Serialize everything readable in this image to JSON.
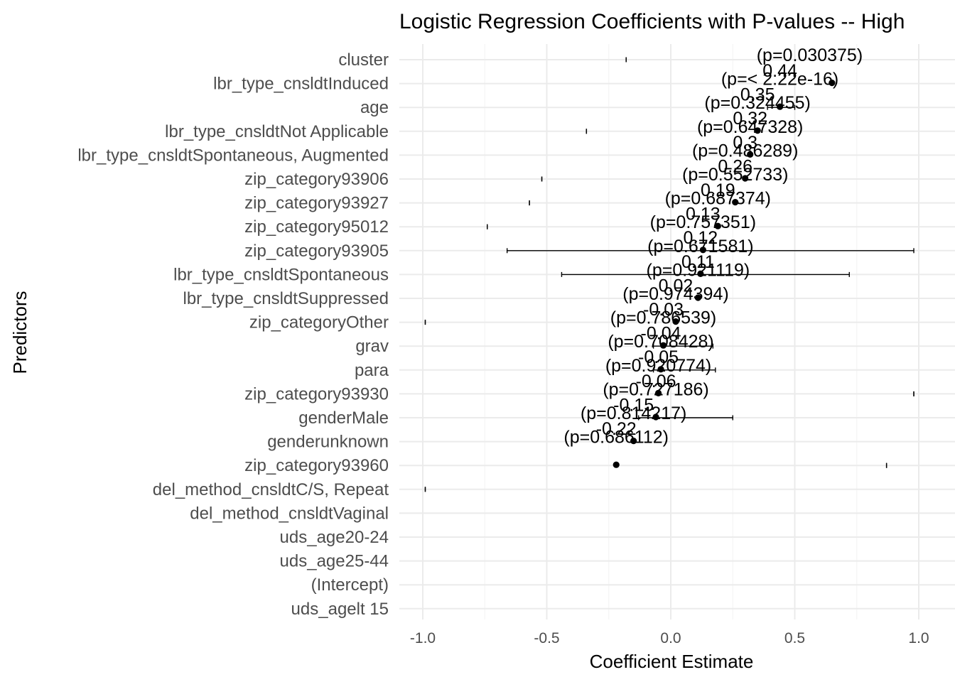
{
  "chart_data": {
    "type": "scatter",
    "title": "Logistic Regression Coefficients with P-values -- High",
    "xlabel": "Coefficient Estimate",
    "ylabel": "Predictors",
    "xlim": [
      -1.1,
      1.1
    ],
    "x_ticks": [
      -1.0,
      -0.5,
      0.0,
      0.5,
      1.0
    ],
    "x_tick_labels": [
      "-1.0",
      "-0.5",
      "0.0",
      "0.5",
      "1.0"
    ],
    "grid": true,
    "legend": "none",
    "predictors": [
      "cluster",
      "lbr_type_cnsldtInduced",
      "age",
      "lbr_type_cnsldtNot Applicable",
      "lbr_type_cnsldtSpontaneous, Augmented",
      "zip_category93906",
      "zip_category93927",
      "zip_category95012",
      "zip_category93905",
      "lbr_type_cnsldtSpontaneous",
      "lbr_type_cnsldtSuppressed",
      "zip_categoryOther",
      "grav",
      "para",
      "zip_category93930",
      "genderMale",
      "genderunknown",
      "zip_category93960",
      "del_method_cnsldtC/S, Repeat",
      "del_method_cnsldtVaginal",
      "uds_age20-24",
      "uds_age25-44",
      "(Intercept)",
      "uds_agelt 15"
    ],
    "points": [
      {
        "row": 1,
        "estimate": 0.65
      },
      {
        "row": 2,
        "estimate": 0.44
      },
      {
        "row": 3,
        "estimate": 0.35
      },
      {
        "row": 4,
        "estimate": 0.32
      },
      {
        "row": 5,
        "estimate": 0.3
      },
      {
        "row": 6,
        "estimate": 0.26
      },
      {
        "row": 7,
        "estimate": 0.19
      },
      {
        "row": 8,
        "estimate": 0.13
      },
      {
        "row": 9,
        "estimate": 0.12
      },
      {
        "row": 10,
        "estimate": 0.11
      },
      {
        "row": 11,
        "estimate": 0.02
      },
      {
        "row": 12,
        "estimate": -0.03
      },
      {
        "row": 13,
        "estimate": -0.04
      },
      {
        "row": 14,
        "estimate": -0.05
      },
      {
        "row": 15,
        "estimate": -0.06
      },
      {
        "row": 16,
        "estimate": -0.15
      },
      {
        "row": 17,
        "estimate": -0.22
      }
    ],
    "error_bars": [
      {
        "row": 0,
        "low": -0.18,
        "high": -0.18
      },
      {
        "row": 2,
        "low": 0.39,
        "high": 0.5
      },
      {
        "row": 3,
        "low": -0.34,
        "high": -0.34
      },
      {
        "row": 5,
        "low": -0.52,
        "high": -0.52
      },
      {
        "row": 6,
        "low": -0.57,
        "high": -0.57
      },
      {
        "row": 7,
        "low": -0.74,
        "high": -0.74
      },
      {
        "row": 8,
        "low": -0.66,
        "high": 0.98
      },
      {
        "row": 9,
        "low": -0.44,
        "high": 0.72
      },
      {
        "row": 11,
        "low": -0.99,
        "high": -0.99
      },
      {
        "row": 12,
        "low": -0.07,
        "high": 0.17
      },
      {
        "row": 13,
        "low": -0.07,
        "high": 0.18
      },
      {
        "row": 14,
        "low": 0.98,
        "high": 0.98
      },
      {
        "row": 15,
        "low": -0.13,
        "high": 0.25
      },
      {
        "row": 17,
        "low": 0.87,
        "high": 0.87
      },
      {
        "row": 18,
        "low": -0.99,
        "high": -0.99
      }
    ],
    "p_labels": [
      {
        "row": 0,
        "x": 0.56,
        "text": "(p=0.030375)"
      },
      {
        "row": 1,
        "x": 0.44,
        "text": "(p=< 2.22e-16)"
      },
      {
        "row": 2,
        "x": 0.35,
        "text": "(p=0.324455)"
      },
      {
        "row": 3,
        "x": 0.32,
        "text": "(p=0.647328)"
      },
      {
        "row": 4,
        "x": 0.3,
        "text": "(p=0.486289)"
      },
      {
        "row": 5,
        "x": 0.26,
        "text": "(p=0.552733)"
      },
      {
        "row": 6,
        "x": 0.19,
        "text": "(p=0.687374)"
      },
      {
        "row": 7,
        "x": 0.13,
        "text": "(p=0.757351)"
      },
      {
        "row": 8,
        "x": 0.12,
        "text": "(p=0.671581)"
      },
      {
        "row": 9,
        "x": 0.11,
        "text": "(p=0.921119)"
      },
      {
        "row": 10,
        "x": 0.02,
        "text": "(p=0.974394)"
      },
      {
        "row": 11,
        "x": -0.03,
        "text": "(p=0.786539)"
      },
      {
        "row": 12,
        "x": -0.04,
        "text": "(p=0.708428)"
      },
      {
        "row": 13,
        "x": -0.05,
        "text": "(p=0.920774)"
      },
      {
        "row": 14,
        "x": -0.06,
        "text": "(p=0.727186)"
      },
      {
        "row": 15,
        "x": -0.15,
        "text": "(p=0.814217)"
      },
      {
        "row": 16,
        "x": -0.22,
        "text": "(p=0.686112)"
      }
    ],
    "estimate_labels": [
      {
        "row": 0,
        "x": 0.44,
        "text": "0.44"
      },
      {
        "row": 1,
        "x": 0.35,
        "text": "0.35"
      },
      {
        "row": 2,
        "x": 0.32,
        "text": "0.32"
      },
      {
        "row": 3,
        "x": 0.3,
        "text": "0.3"
      },
      {
        "row": 4,
        "x": 0.26,
        "text": "0.26"
      },
      {
        "row": 5,
        "x": 0.19,
        "text": "0.19"
      },
      {
        "row": 6,
        "x": 0.13,
        "text": "0.13"
      },
      {
        "row": 7,
        "x": 0.12,
        "text": "0.12"
      },
      {
        "row": 8,
        "x": 0.11,
        "text": "0.11"
      },
      {
        "row": 9,
        "x": 0.02,
        "text": "0.02"
      },
      {
        "row": 10,
        "x": -0.03,
        "text": "-0.03"
      },
      {
        "row": 11,
        "x": -0.04,
        "text": "-0.04"
      },
      {
        "row": 12,
        "x": -0.05,
        "text": "-0.05"
      },
      {
        "row": 13,
        "x": -0.06,
        "text": "-0.06"
      },
      {
        "row": 14,
        "x": -0.15,
        "text": "-0.15"
      },
      {
        "row": 15,
        "x": -0.22,
        "text": "-0.22"
      }
    ]
  }
}
